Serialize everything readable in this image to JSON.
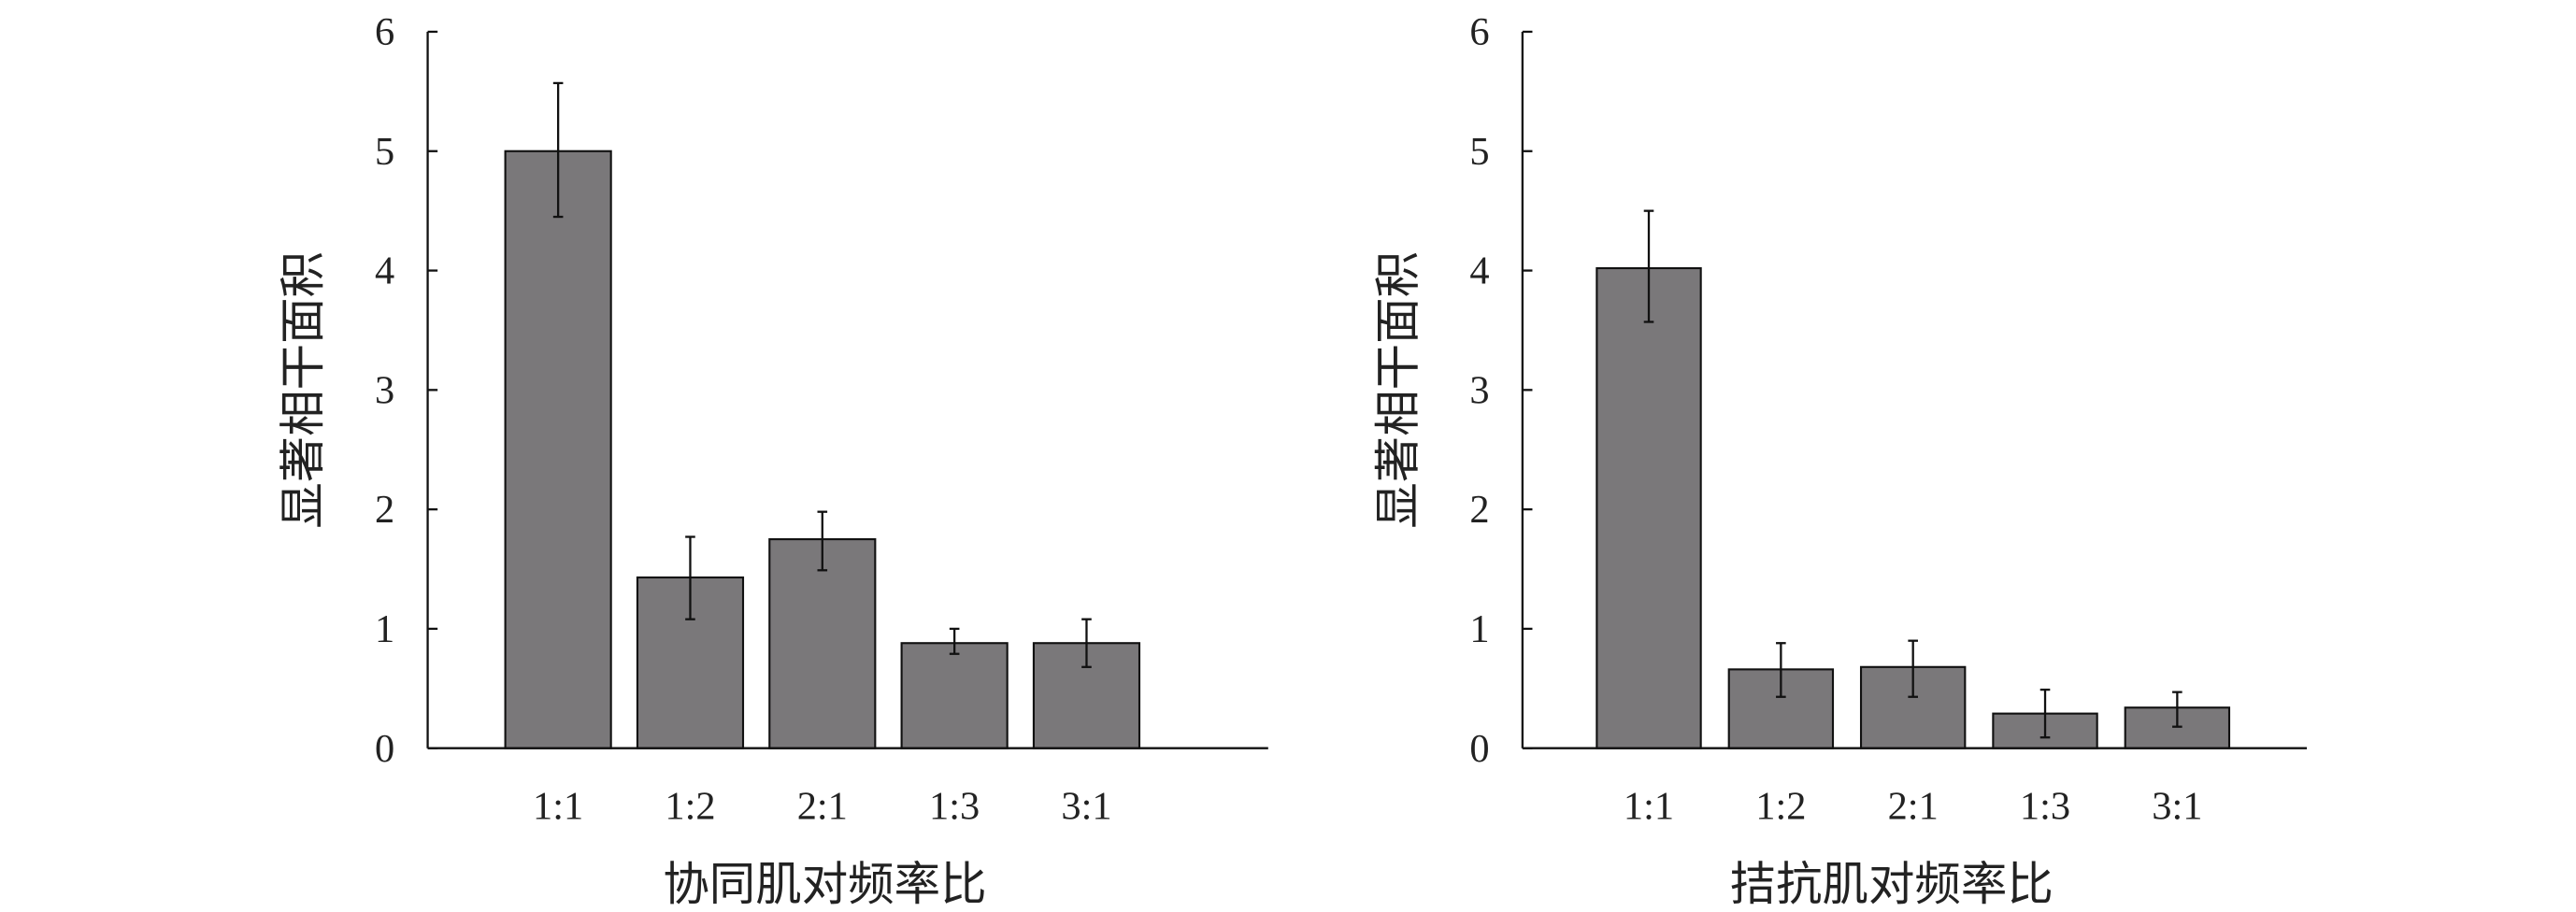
{
  "chart_data": [
    {
      "type": "bar",
      "categories": [
        "1:1",
        "1:2",
        "2:1",
        "1:3",
        "3:1"
      ],
      "values": [
        5.0,
        1.43,
        1.75,
        0.88,
        0.88
      ],
      "error_low": [
        4.45,
        1.08,
        1.49,
        0.79,
        0.68
      ],
      "error_high": [
        5.57,
        1.77,
        1.98,
        1.0,
        1.08
      ],
      "xlabel": "协同肌对频率比",
      "ylabel": "显著相干面积",
      "ylim": [
        0,
        6
      ],
      "yticks": [
        "0",
        "1",
        "2",
        "3",
        "4",
        "5",
        "6"
      ],
      "grid": false,
      "bar_color": "#7a787a"
    },
    {
      "type": "bar",
      "categories": [
        "1:1",
        "1:2",
        "2:1",
        "1:3",
        "3:1"
      ],
      "values": [
        4.02,
        0.66,
        0.68,
        0.29,
        0.34
      ],
      "error_low": [
        3.57,
        0.43,
        0.43,
        0.09,
        0.18
      ],
      "error_high": [
        4.5,
        0.88,
        0.9,
        0.49,
        0.47
      ],
      "xlabel": "拮抗肌对频率比",
      "ylabel": "显著相干面积",
      "ylim": [
        0,
        6
      ],
      "yticks": [
        "0",
        "1",
        "2",
        "3",
        "4",
        "5",
        "6"
      ],
      "grid": false,
      "bar_color": "#7a787a"
    }
  ]
}
